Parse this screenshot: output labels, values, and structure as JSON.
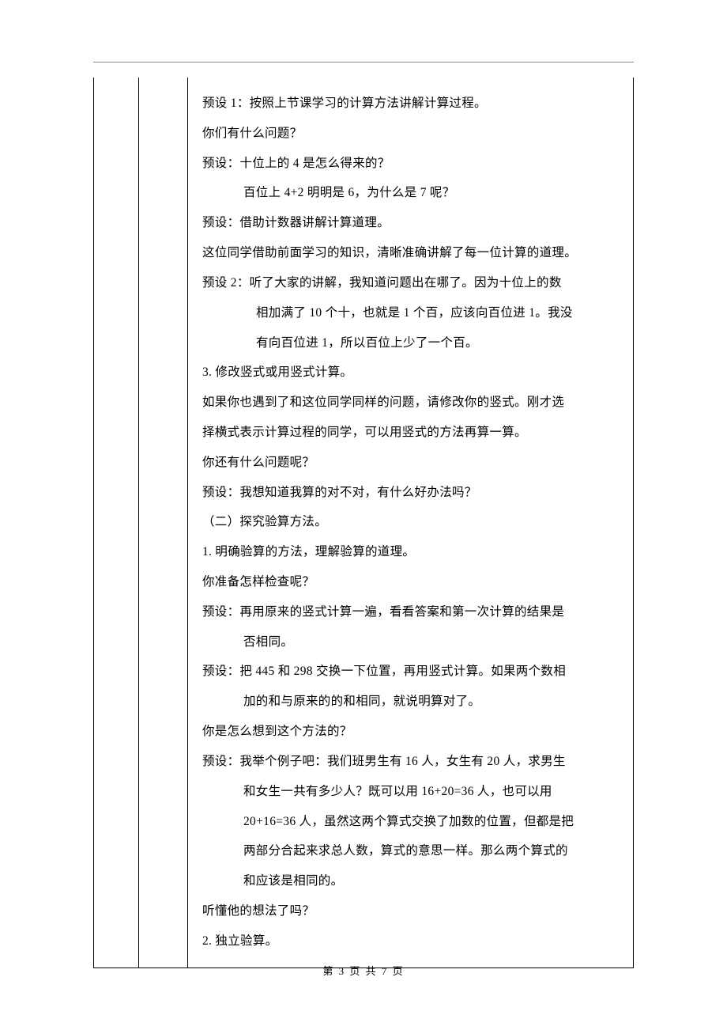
{
  "lines": [
    {
      "text": "预设 1：按照上节课学习的计算方法讲解计算过程。",
      "cls": ""
    },
    {
      "text": "你们有什么问题？",
      "cls": ""
    },
    {
      "text": "预设：十位上的 4 是怎么得来的？",
      "cls": ""
    },
    {
      "text": "百位上 4+2 明明是 6，为什么是 7 呢？",
      "cls": "indent-1"
    },
    {
      "text": "预设：借助计数器讲解计算道理。",
      "cls": ""
    },
    {
      "text": "这位同学借助前面学习的知识，清晰准确讲解了每一位计算的道理。",
      "cls": ""
    },
    {
      "text": "预设 2：听了大家的讲解，我知道问题出在哪了。因为十位上的数",
      "cls": ""
    },
    {
      "text": "相加满了 10 个十，也就是 1 个百，应该向百位进 1。我没",
      "cls": "indent-2"
    },
    {
      "text": "有向百位进 1，所以百位上少了一个百。",
      "cls": "indent-2"
    },
    {
      "text": "3. 修改竖式或用竖式计算。",
      "cls": ""
    },
    {
      "text": "如果你也遇到了和这位同学同样的问题，请修改你的竖式。刚才选",
      "cls": ""
    },
    {
      "text": "择横式表示计算过程的同学，可以用竖式的方法再算一算。",
      "cls": ""
    },
    {
      "text": "你还有什么问题呢？",
      "cls": ""
    },
    {
      "text": "预设：我想知道我算的对不对，有什么好办法吗？",
      "cls": ""
    },
    {
      "text": "（二）探究验算方法。",
      "cls": ""
    },
    {
      "text": "1. 明确验算的方法，理解验算的道理。",
      "cls": ""
    },
    {
      "text": "你准备怎样检查呢？",
      "cls": ""
    },
    {
      "text": "预设：再用原来的竖式计算一遍，看看答案和第一次计算的结果是",
      "cls": ""
    },
    {
      "text": "否相同。",
      "cls": "indent-1"
    },
    {
      "text": "预设：把 445 和 298 交换一下位置，再用竖式计算。如果两个数相",
      "cls": ""
    },
    {
      "text": "加的和与原来的的和相同，就说明算对了。",
      "cls": "indent-1"
    },
    {
      "text": "你是怎么想到这个方法的？",
      "cls": ""
    },
    {
      "text": "预设：我举个例子吧：我们班男生有 16 人，女生有 20 人，求男生",
      "cls": ""
    },
    {
      "text": "和女生一共有多少人？既可以用 16+20=36 人，也可以用",
      "cls": "indent-1"
    },
    {
      "text": "20+16=36 人，虽然这两个算式交换了加数的位置，但都是把",
      "cls": "indent-1"
    },
    {
      "text": "两部分合起来求总人数，算式的意思一样。那么两个算式的",
      "cls": "indent-1"
    },
    {
      "text": "和应该是相同的。",
      "cls": "indent-1"
    },
    {
      "text": "听懂他的想法了吗？",
      "cls": ""
    },
    {
      "text": "2. 独立验算。",
      "cls": ""
    }
  ],
  "footer": "第 3 页 共 7 页"
}
